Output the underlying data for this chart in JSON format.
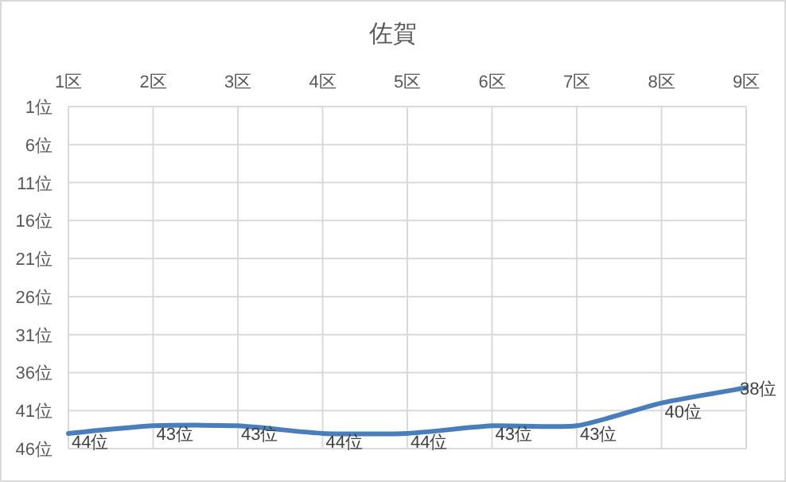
{
  "chart_data": {
    "type": "line",
    "title": "佐賀",
    "categories": [
      "1区",
      "2区",
      "3区",
      "4区",
      "5区",
      "6区",
      "7区",
      "8区",
      "9区"
    ],
    "series": [
      {
        "color": "#4a7ebb",
        "values": [
          44,
          43,
          43,
          44,
          44,
          43,
          43,
          40,
          38
        ],
        "value_labels": [
          "44位",
          "43位",
          "43位",
          "44位",
          "44位",
          "43位",
          "43位",
          "40位",
          "38位"
        ]
      }
    ],
    "ylim": [
      46,
      1
    ],
    "yticks": [
      {
        "value": 1,
        "label": "1位"
      },
      {
        "value": 6,
        "label": "6位"
      },
      {
        "value": 11,
        "label": "11位"
      },
      {
        "value": 16,
        "label": "16位"
      },
      {
        "value": 21,
        "label": "21位"
      },
      {
        "value": 26,
        "label": "26位"
      },
      {
        "value": 31,
        "label": "31位"
      },
      {
        "value": 36,
        "label": "36位"
      },
      {
        "value": 41,
        "label": "41位"
      },
      {
        "value": 46,
        "label": "46位"
      }
    ],
    "grid": true,
    "marker": "none",
    "line_style": "solid"
  }
}
